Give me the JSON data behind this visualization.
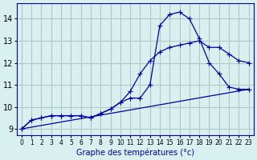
{
  "title": "Graphe des températures (°c)",
  "background_color": "#d8f0f0",
  "grid_color": "#b0c8c8",
  "line_color": "#0000aa",
  "x_labels": [
    "0",
    "1",
    "2",
    "3",
    "4",
    "5",
    "6",
    "7",
    "8",
    "9",
    "10",
    "11",
    "12",
    "13",
    "14",
    "15",
    "16",
    "17",
    "18",
    "19",
    "20",
    "21",
    "22",
    "23"
  ],
  "ylim": [
    8.7,
    14.7
  ],
  "xlim": [
    -0.5,
    23.5
  ],
  "yticks": [
    9,
    10,
    11,
    12,
    13,
    14
  ],
  "curve1_x": [
    0,
    1,
    2,
    3,
    4,
    5,
    6,
    7,
    8,
    9,
    10,
    11,
    12,
    13,
    14,
    15,
    16,
    17,
    18,
    19,
    20,
    21,
    22,
    23
  ],
  "curve1_y": [
    9.0,
    9.4,
    9.5,
    9.6,
    9.6,
    9.6,
    9.6,
    9.5,
    9.7,
    9.9,
    10.2,
    10.4,
    10.4,
    11.0,
    13.7,
    14.2,
    14.3,
    14.0,
    13.1,
    12.0,
    11.5,
    10.9,
    10.8,
    10.8
  ],
  "curve2_x": [
    0,
    1,
    2,
    3,
    4,
    5,
    6,
    7,
    8,
    9,
    10,
    11,
    12,
    13,
    14,
    15,
    16,
    17,
    18,
    19,
    20,
    21,
    22,
    23
  ],
  "curve2_y": [
    9.0,
    9.4,
    9.5,
    9.6,
    9.6,
    9.6,
    9.6,
    9.5,
    9.7,
    9.9,
    10.2,
    10.7,
    11.5,
    12.1,
    12.5,
    12.7,
    12.8,
    12.9,
    13.0,
    12.7,
    12.7,
    12.4,
    12.1,
    12.0
  ],
  "curve3_x": [
    0,
    23
  ],
  "curve3_y": [
    9.0,
    10.8
  ]
}
